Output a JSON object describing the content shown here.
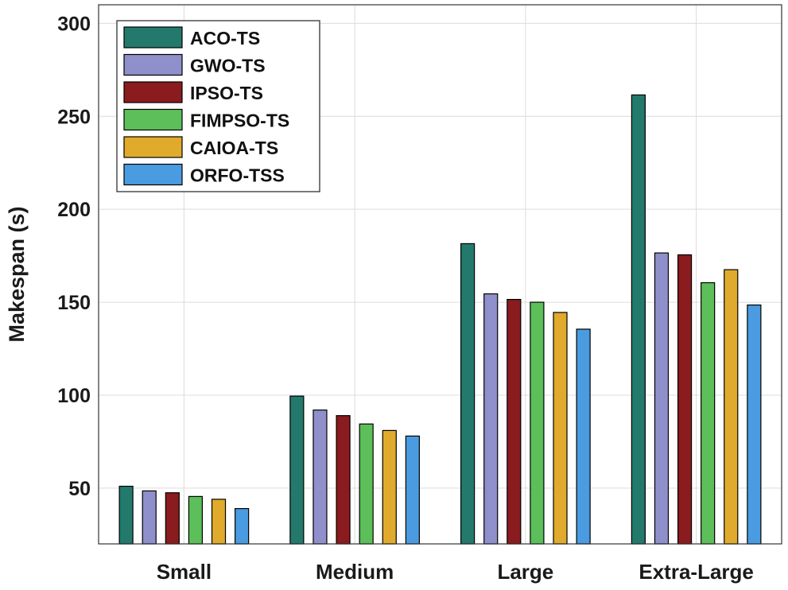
{
  "chart_data": {
    "type": "bar",
    "title": "",
    "xlabel": "",
    "ylabel": "Makespan (s)",
    "ylim": [
      20,
      310
    ],
    "yticks": [
      50,
      100,
      150,
      200,
      250,
      300
    ],
    "grid": true,
    "legend_position": "top-left",
    "categories": [
      "Small",
      "Medium",
      "Large",
      "Extra-Large"
    ],
    "series": [
      {
        "name": "ACO-TS",
        "color": "#237a6c",
        "values": [
          51,
          99.5,
          181.5,
          261.5
        ]
      },
      {
        "name": "GWO-TS",
        "color": "#8f8fcb",
        "values": [
          48.5,
          92,
          154.5,
          176.5
        ]
      },
      {
        "name": "IPSO-TS",
        "color": "#8a1b1e",
        "values": [
          47.5,
          89,
          151.5,
          175.5
        ]
      },
      {
        "name": "FIMPSO-TS",
        "color": "#5cbf5a",
        "values": [
          45.5,
          84.5,
          150,
          160.5
        ]
      },
      {
        "name": "CAIOA-TS",
        "color": "#e0ab2c",
        "values": [
          44,
          81,
          144.5,
          167.5
        ]
      },
      {
        "name": "ORFO-TSS",
        "color": "#4a9be0",
        "values": [
          39,
          78,
          135.5,
          148.5
        ]
      }
    ]
  }
}
